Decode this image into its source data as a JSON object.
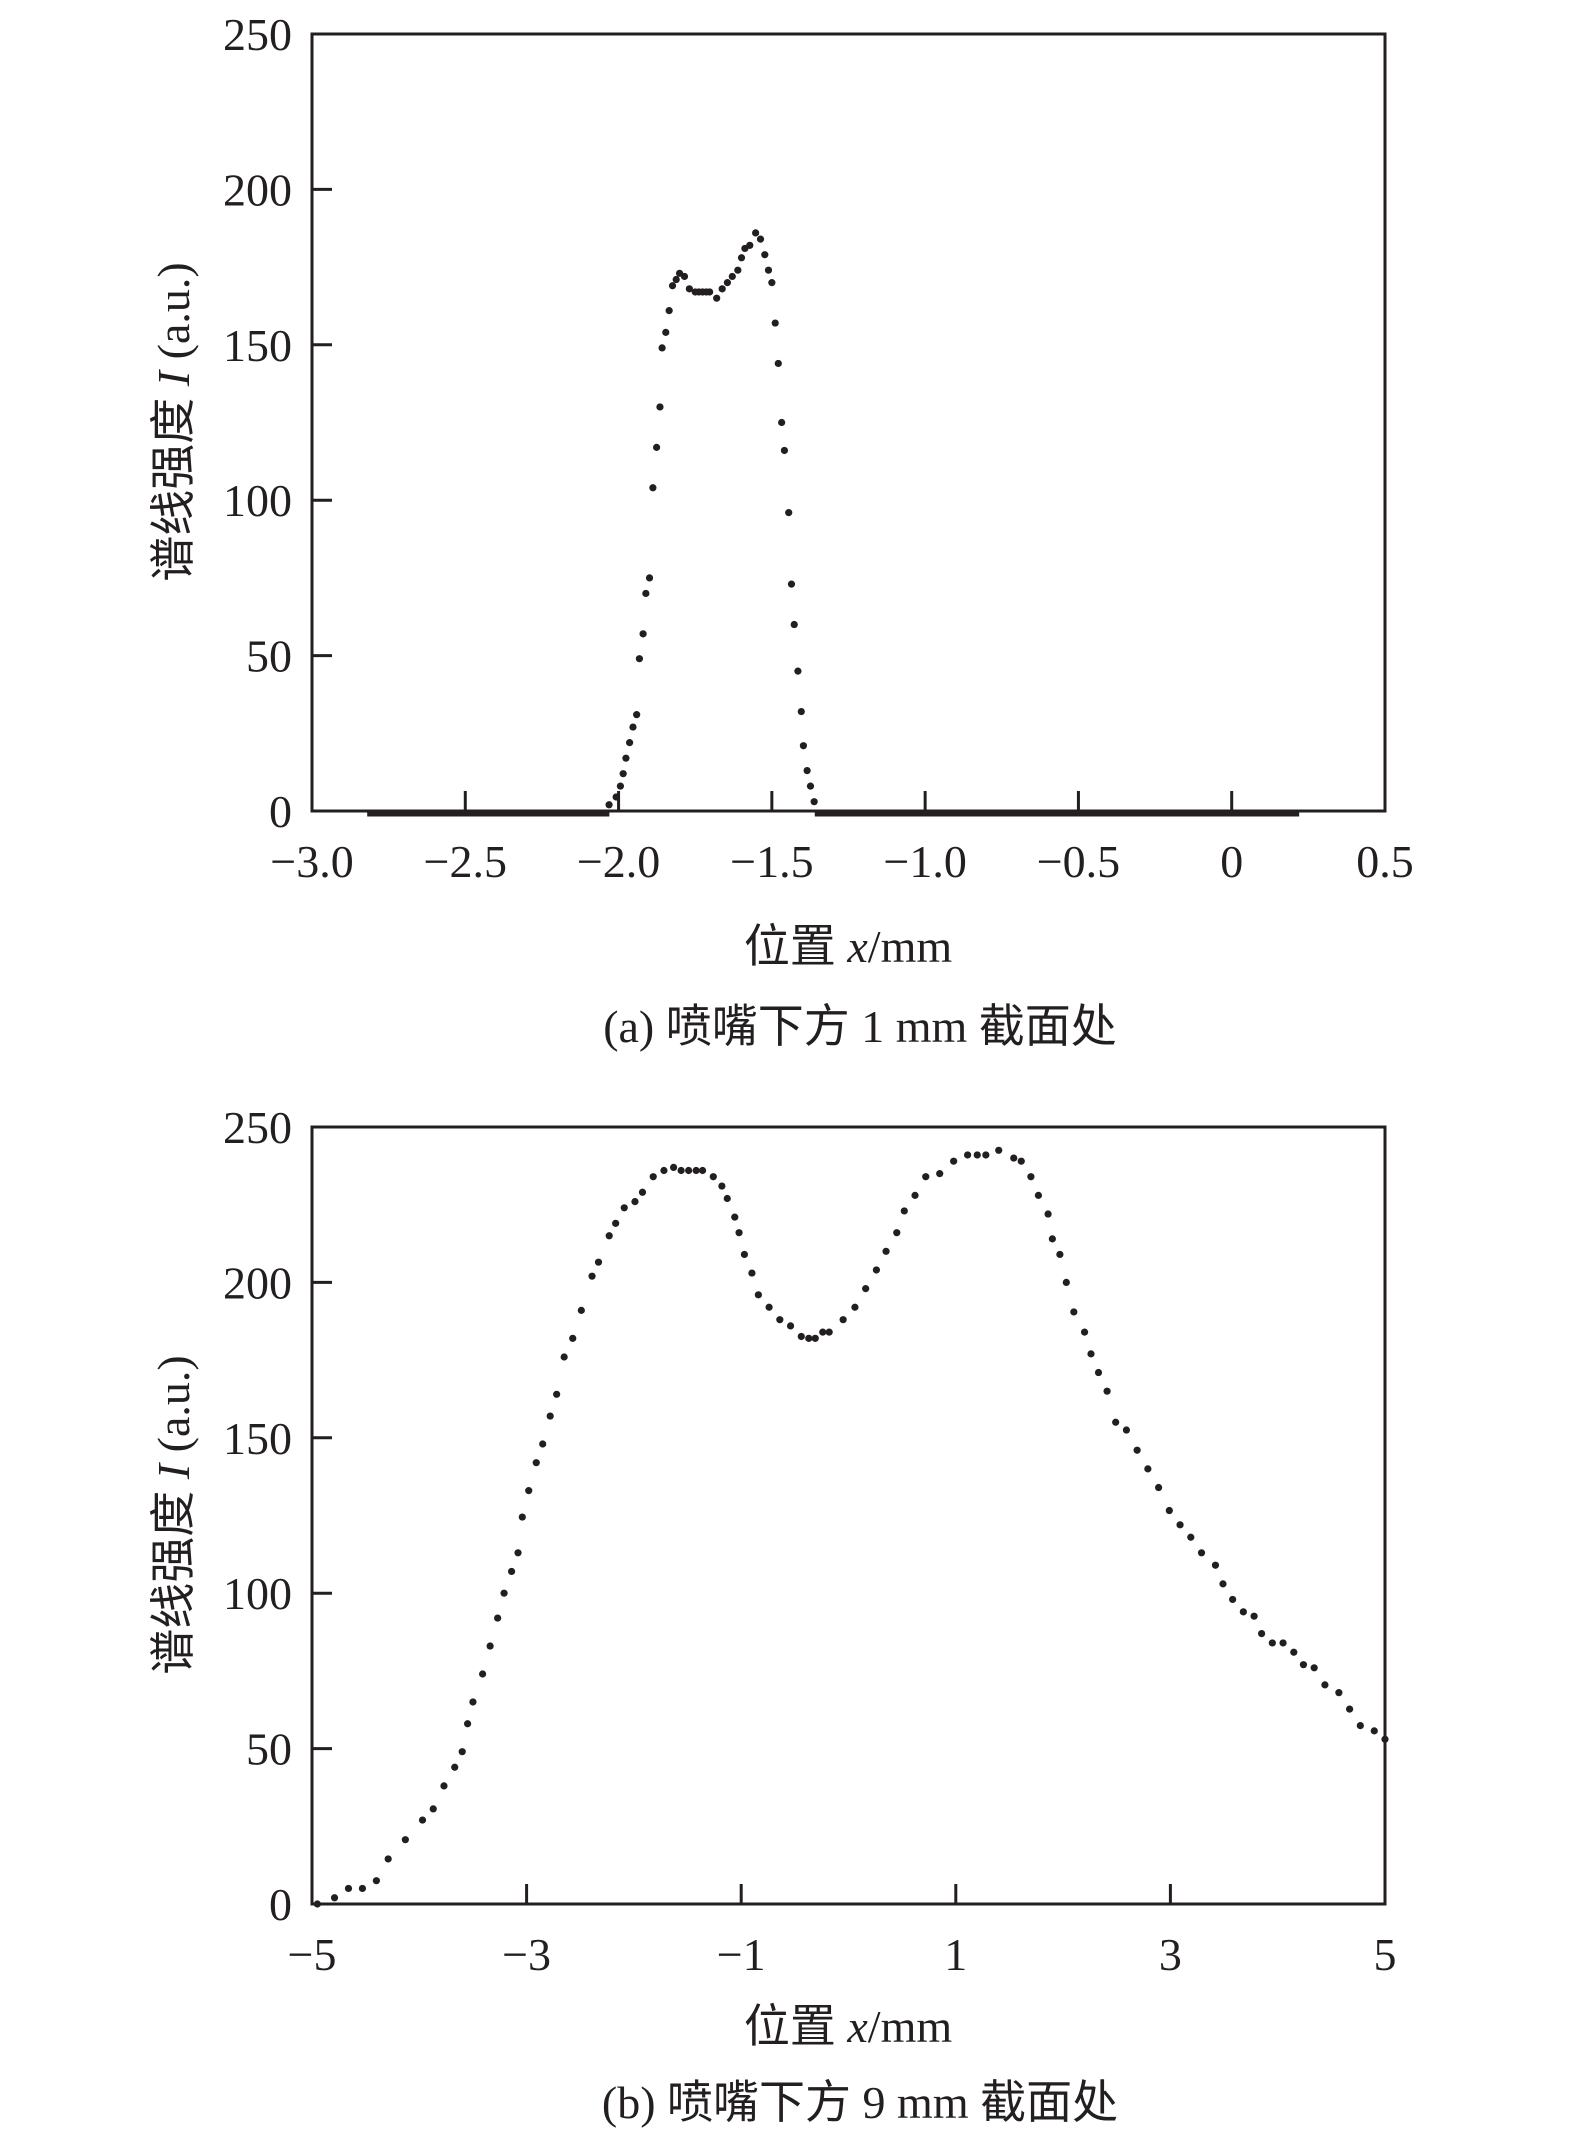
{
  "chart_data": [
    {
      "type": "scatter",
      "caption": "(a) 喷嘴下方 1 mm 截面处",
      "xlabel_prefix": "位置 ",
      "xlabel_var": "x",
      "xlabel_suffix": "/mm",
      "ylabel_prefix": "谱线强度 ",
      "ylabel_var": "I",
      "ylabel_suffix": " (a.u.)",
      "xlim": [
        -3.0,
        0.5
      ],
      "ylim": [
        0,
        250
      ],
      "xticks": [
        -3.0,
        -2.5,
        -2.0,
        -1.5,
        -1.0,
        -0.5,
        0,
        0.5
      ],
      "xtick_labels": [
        "−3.0",
        "−2.5",
        "−2.0",
        "−1.5",
        "−1.0",
        "−0.5",
        "0",
        "0.5"
      ],
      "yticks": [
        0,
        50,
        100,
        150,
        200,
        250
      ],
      "ytick_labels": [
        "0",
        "50",
        "100",
        "150",
        "200",
        "250"
      ],
      "grid": false,
      "zero_segments": [
        [
          -2.82,
          -2.03
        ],
        [
          -1.36,
          0.22
        ]
      ],
      "points": [
        [
          -2.031,
          2
        ],
        [
          -2.008,
          4.5
        ],
        [
          -1.994,
          8
        ],
        [
          -1.985,
          12
        ],
        [
          -1.976,
          17
        ],
        [
          -1.964,
          22
        ],
        [
          -1.953,
          27
        ],
        [
          -1.941,
          31
        ],
        [
          -1.932,
          49
        ],
        [
          -1.92,
          57
        ],
        [
          -1.911,
          70
        ],
        [
          -1.899,
          75
        ],
        [
          -1.888,
          104
        ],
        [
          -1.876,
          117
        ],
        [
          -1.865,
          130
        ],
        [
          -1.858,
          149
        ],
        [
          -1.846,
          154
        ],
        [
          -1.835,
          161
        ],
        [
          -1.824,
          169
        ],
        [
          -1.812,
          171
        ],
        [
          -1.801,
          173
        ],
        [
          -1.785,
          172
        ],
        [
          -1.769,
          168
        ],
        [
          -1.75,
          167
        ],
        [
          -1.738,
          167
        ],
        [
          -1.726,
          167
        ],
        [
          -1.714,
          167
        ],
        [
          -1.703,
          167
        ],
        [
          -1.68,
          165
        ],
        [
          -1.662,
          168
        ],
        [
          -1.645,
          170
        ],
        [
          -1.629,
          172
        ],
        [
          -1.611,
          174
        ],
        [
          -1.599,
          178
        ],
        [
          -1.588,
          181
        ],
        [
          -1.572,
          182
        ],
        [
          -1.553,
          186
        ],
        [
          -1.537,
          184
        ],
        [
          -1.523,
          179
        ],
        [
          -1.511,
          174
        ],
        [
          -1.5,
          170
        ],
        [
          -1.489,
          157
        ],
        [
          -1.479,
          144
        ],
        [
          -1.468,
          125
        ],
        [
          -1.459,
          116
        ],
        [
          -1.445,
          96
        ],
        [
          -1.436,
          73
        ],
        [
          -1.427,
          60
        ],
        [
          -1.415,
          45
        ],
        [
          -1.404,
          32
        ],
        [
          -1.397,
          21
        ],
        [
          -1.385,
          13
        ],
        [
          -1.374,
          8
        ],
        [
          -1.362,
          3
        ]
      ]
    },
    {
      "type": "scatter",
      "caption": "(b) 喷嘴下方 9 mm 截面处",
      "xlabel_prefix": "位置 ",
      "xlabel_var": "x",
      "xlabel_suffix": "/mm",
      "ylabel_prefix": "谱线强度 ",
      "ylabel_var": "I",
      "ylabel_suffix": " (a.u.)",
      "xlim": [
        -5,
        5
      ],
      "ylim": [
        0,
        250
      ],
      "xticks": [
        -5,
        -3,
        -1,
        1,
        3,
        5
      ],
      "xtick_labels": [
        "−5",
        "−3",
        "−1",
        "1",
        "3",
        "5"
      ],
      "yticks": [
        0,
        50,
        100,
        150,
        200,
        250
      ],
      "ytick_labels": [
        "0",
        "50",
        "100",
        "150",
        "200",
        "250"
      ],
      "grid": false,
      "zero_segments": [],
      "points": [
        [
          -4.95,
          0
        ],
        [
          -4.79,
          2
        ],
        [
          -4.66,
          5
        ],
        [
          -4.53,
          5
        ],
        [
          -4.4,
          7.5
        ],
        [
          -4.29,
          14.5
        ],
        [
          -4.13,
          20.7
        ],
        [
          -3.97,
          27
        ],
        [
          -3.87,
          30.6
        ],
        [
          -3.77,
          38
        ],
        [
          -3.67,
          44
        ],
        [
          -3.6,
          49
        ],
        [
          -3.55,
          58
        ],
        [
          -3.5,
          65
        ],
        [
          -3.41,
          74
        ],
        [
          -3.34,
          83
        ],
        [
          -3.27,
          92
        ],
        [
          -3.21,
          100
        ],
        [
          -3.14,
          107
        ],
        [
          -3.08,
          113
        ],
        [
          -3.04,
          124.5
        ],
        [
          -2.98,
          133
        ],
        [
          -2.91,
          142
        ],
        [
          -2.85,
          148
        ],
        [
          -2.78,
          157
        ],
        [
          -2.72,
          164
        ],
        [
          -2.65,
          176
        ],
        [
          -2.57,
          182
        ],
        [
          -2.49,
          191
        ],
        [
          -2.39,
          202
        ],
        [
          -2.33,
          206.5
        ],
        [
          -2.23,
          215
        ],
        [
          -2.17,
          219
        ],
        [
          -2.09,
          224
        ],
        [
          -1.99,
          226
        ],
        [
          -1.92,
          229
        ],
        [
          -1.82,
          234
        ],
        [
          -1.72,
          236
        ],
        [
          -1.63,
          237
        ],
        [
          -1.56,
          236
        ],
        [
          -1.49,
          236
        ],
        [
          -1.42,
          236
        ],
        [
          -1.36,
          236
        ],
        [
          -1.26,
          234
        ],
        [
          -1.18,
          231
        ],
        [
          -1.13,
          227
        ],
        [
          -1.06,
          221
        ],
        [
          -1.02,
          216
        ],
        [
          -0.97,
          209
        ],
        [
          -0.9,
          203
        ],
        [
          -0.84,
          196
        ],
        [
          -0.74,
          192
        ],
        [
          -0.64,
          188
        ],
        [
          -0.54,
          186
        ],
        [
          -0.44,
          182.6
        ],
        [
          -0.37,
          182
        ],
        [
          -0.31,
          182
        ],
        [
          -0.24,
          184
        ],
        [
          -0.18,
          184
        ],
        [
          -0.05,
          188
        ],
        [
          0.06,
          192
        ],
        [
          0.16,
          198
        ],
        [
          0.26,
          204
        ],
        [
          0.35,
          210
        ],
        [
          0.45,
          216
        ],
        [
          0.52,
          223
        ],
        [
          0.62,
          228
        ],
        [
          0.72,
          234
        ],
        [
          0.85,
          235
        ],
        [
          0.98,
          239
        ],
        [
          1.11,
          241
        ],
        [
          1.2,
          241
        ],
        [
          1.28,
          241
        ],
        [
          1.4,
          242.5
        ],
        [
          1.54,
          240
        ],
        [
          1.61,
          239
        ],
        [
          1.7,
          234
        ],
        [
          1.77,
          228
        ],
        [
          1.86,
          222
        ],
        [
          1.9,
          214
        ],
        [
          1.97,
          209
        ],
        [
          2.03,
          200
        ],
        [
          2.1,
          190.5
        ],
        [
          2.2,
          184
        ],
        [
          2.26,
          177
        ],
        [
          2.33,
          171
        ],
        [
          2.41,
          165
        ],
        [
          2.49,
          155
        ],
        [
          2.59,
          152.5
        ],
        [
          2.69,
          146
        ],
        [
          2.79,
          140
        ],
        [
          2.89,
          134
        ],
        [
          2.99,
          126.6
        ],
        [
          3.09,
          122
        ],
        [
          3.19,
          118
        ],
        [
          3.29,
          113
        ],
        [
          3.42,
          109
        ],
        [
          3.49,
          103
        ],
        [
          3.58,
          98
        ],
        [
          3.68,
          94
        ],
        [
          3.78,
          92.6
        ],
        [
          3.85,
          87
        ],
        [
          3.95,
          84
        ],
        [
          4.05,
          84
        ],
        [
          4.15,
          81
        ],
        [
          4.24,
          77
        ],
        [
          4.34,
          76
        ],
        [
          4.44,
          70.5
        ],
        [
          4.57,
          68
        ],
        [
          4.67,
          62.7
        ],
        [
          4.77,
          57.4
        ],
        [
          4.9,
          55.7
        ],
        [
          5.0,
          53
        ]
      ]
    }
  ]
}
